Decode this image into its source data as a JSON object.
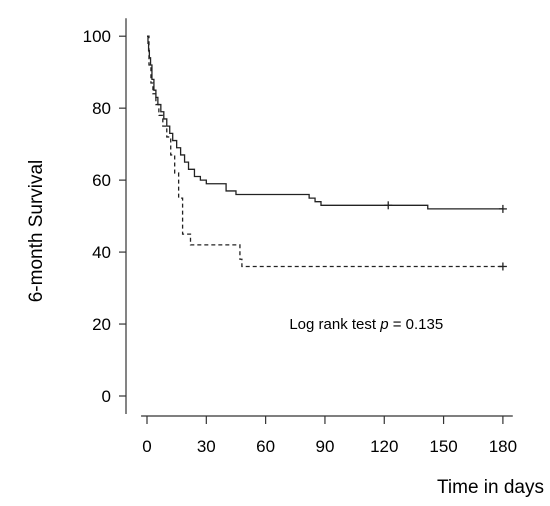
{
  "chart_data": {
    "type": "line",
    "title": "",
    "xlabel": "Time in days",
    "ylabel": "6-month Survival",
    "xlim": [
      -3,
      185
    ],
    "ylim": [
      -5,
      105
    ],
    "xticks": [
      0,
      30,
      60,
      90,
      120,
      150,
      180
    ],
    "yticks": [
      0,
      20,
      40,
      60,
      80,
      100
    ],
    "grid": false,
    "annotation": {
      "prefix": "Log rank test ",
      "italic": "p",
      "suffix": " = 0.135",
      "x": 72,
      "y": 20
    },
    "series": [
      {
        "style": "solid",
        "x": [
          0,
          0.5,
          0.8,
          1.2,
          1.8,
          2.5,
          3.5,
          4.5,
          5.5,
          7,
          8.5,
          10,
          11.5,
          13,
          15,
          17,
          19,
          21,
          24,
          27,
          30,
          40,
          45,
          75,
          82,
          85,
          88,
          120,
          142,
          180
        ],
        "y": [
          100,
          98,
          96,
          94,
          92,
          88,
          85,
          83,
          81,
          79,
          77,
          75,
          73,
          71,
          69,
          67,
          65,
          63,
          61,
          60,
          59,
          57,
          56,
          56,
          55,
          54,
          53,
          53,
          52,
          52
        ],
        "censored": [
          [
            122,
            53
          ],
          [
            180,
            52
          ]
        ]
      },
      {
        "style": "dashed",
        "x": [
          0,
          1,
          2,
          3,
          4.5,
          6,
          8,
          10,
          12,
          14,
          16,
          18,
          22,
          45,
          47,
          48,
          180
        ],
        "y": [
          100,
          92,
          87,
          84,
          81,
          78,
          75,
          72,
          67,
          62,
          55,
          45,
          42,
          42,
          38,
          36,
          36
        ],
        "censored": [
          [
            180,
            36
          ]
        ]
      }
    ]
  }
}
